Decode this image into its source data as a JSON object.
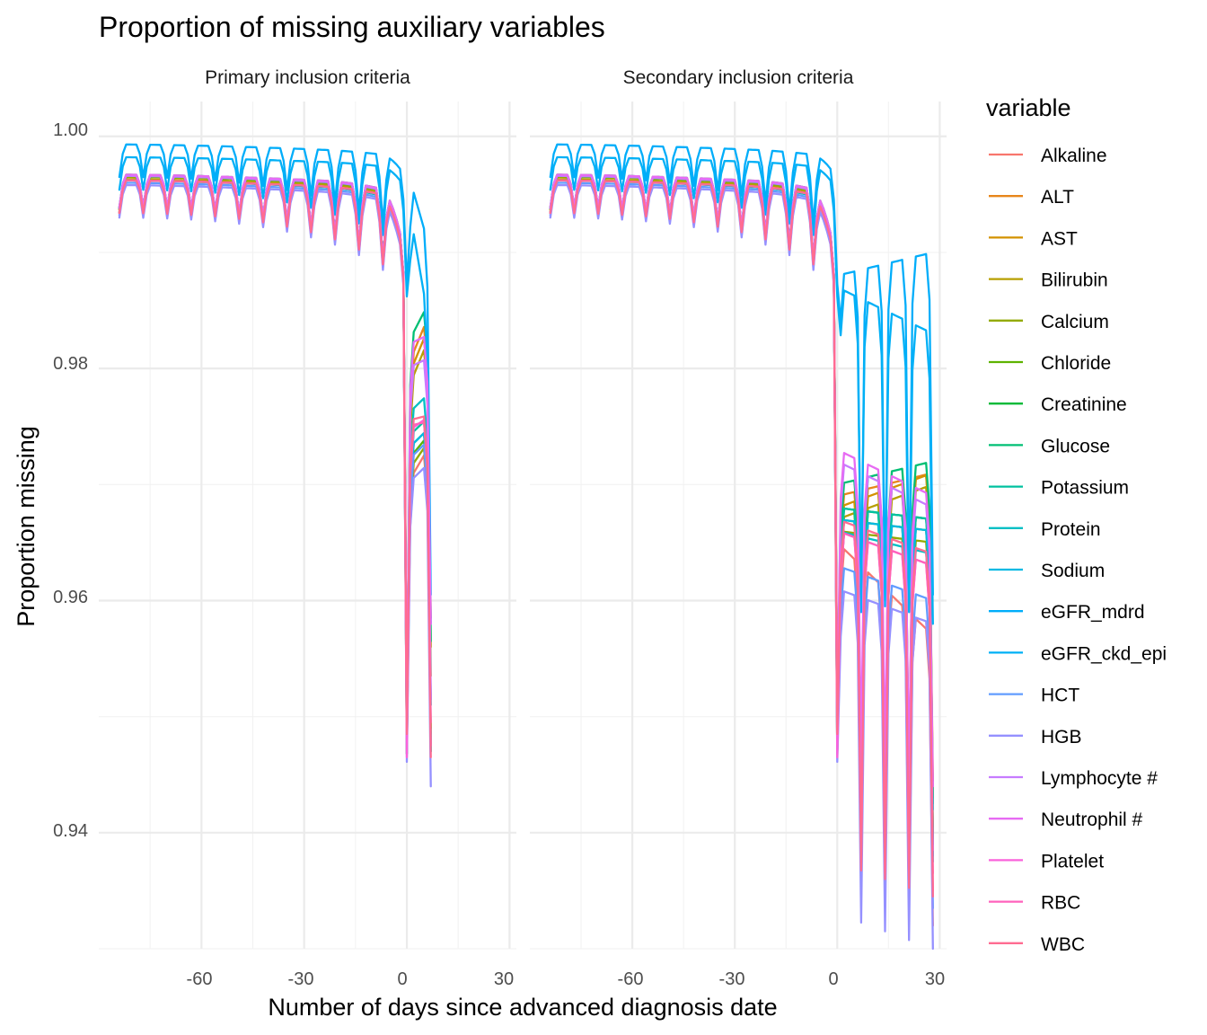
{
  "chart_data": {
    "type": "line",
    "title": "Proportion of missing auxiliary variables",
    "xlabel": "Number of days since advanced diagnosis date",
    "ylabel": "Proportion missing",
    "xlim": [
      -90,
      32
    ],
    "ylim": [
      0.93,
      1.003
    ],
    "x_ticks": [
      -60,
      -30,
      0,
      30
    ],
    "y_ticks": [
      0.94,
      0.96,
      0.98,
      1.0
    ],
    "x_tick_labels": [
      "-60",
      "-30",
      "0",
      "30"
    ],
    "y_tick_labels": [
      "0.94",
      "0.96",
      "0.98",
      "1.00"
    ],
    "grid": true,
    "legend": {
      "title": "variable",
      "position": "right"
    },
    "facets": [
      {
        "label": "Primary inclusion criteria",
        "x_end": 7
      },
      {
        "label": "Secondary inclusion criteria",
        "x_end": 28
      }
    ],
    "series": [
      {
        "name": "Alkaline",
        "color": "#F8766D",
        "pre": [
          0.9962,
          0.9952
        ],
        "dip": [
          0.9955,
          0.9957
        ],
        "post_p": [
          0.97,
          0.9735
        ],
        "post_s": [
          0.965,
          0.957
        ]
      },
      {
        "name": "ALT",
        "color": "#E7861B",
        "pre": [
          0.9965,
          0.9957
        ],
        "dip": [
          0.9958,
          0.996
        ],
        "post_p": [
          0.98,
          0.985
        ],
        "post_s": [
          0.969,
          0.971
        ]
      },
      {
        "name": "AST",
        "color": "#D39200",
        "pre": [
          0.9965,
          0.9957
        ],
        "dip": [
          0.9958,
          0.996
        ],
        "post_p": [
          0.979,
          0.984
        ],
        "post_s": [
          0.968,
          0.971
        ]
      },
      {
        "name": "Bilirubin",
        "color": "#B79F00",
        "pre": [
          0.9963,
          0.9955
        ],
        "dip": [
          0.9956,
          0.9958
        ],
        "post_p": [
          0.978,
          0.983
        ],
        "post_s": [
          0.967,
          0.97
        ]
      },
      {
        "name": "Calcium",
        "color": "#93AA00",
        "pre": [
          0.9965,
          0.9956
        ],
        "dip": [
          0.9957,
          0.9959
        ],
        "post_p": [
          0.971,
          0.974
        ],
        "post_s": [
          0.966,
          0.965
        ]
      },
      {
        "name": "Chloride",
        "color": "#5EB300",
        "pre": [
          0.9966,
          0.9957
        ],
        "dip": [
          0.9958,
          0.996
        ],
        "post_p": [
          0.972,
          0.9745
        ],
        "post_s": [
          0.967,
          0.966
        ]
      },
      {
        "name": "Creatinine",
        "color": "#00BA38",
        "pre": [
          0.9967,
          0.9958
        ],
        "dip": [
          0.9959,
          0.9961
        ],
        "post_p": [
          0.973,
          0.975
        ],
        "post_s": [
          0.968,
          0.967
        ]
      },
      {
        "name": "Glucose",
        "color": "#00BF74",
        "pre": [
          0.9966,
          0.9957
        ],
        "dip": [
          0.9958,
          0.996
        ],
        "post_p": [
          0.982,
          0.986
        ],
        "post_s": [
          0.97,
          0.972
        ]
      },
      {
        "name": "Potassium",
        "color": "#00C19F",
        "pre": [
          0.9966,
          0.9957
        ],
        "dip": [
          0.9958,
          0.996
        ],
        "post_p": [
          0.974,
          0.976
        ],
        "post_s": [
          0.968,
          0.967
        ]
      },
      {
        "name": "Protein",
        "color": "#00BFC4",
        "pre": [
          0.9962,
          0.9952
        ],
        "dip": [
          0.9955,
          0.9957
        ],
        "post_p": [
          0.976,
          0.978
        ],
        "post_s": [
          0.966,
          0.964
        ]
      },
      {
        "name": "Sodium",
        "color": "#00B9E3",
        "pre": [
          0.9966,
          0.9957
        ],
        "dip": [
          0.9958,
          0.996
        ],
        "post_p": [
          0.973,
          0.975
        ],
        "post_s": [
          0.967,
          0.966
        ]
      },
      {
        "name": "eGFR_mdrd",
        "color": "#00ADFA",
        "pre": [
          0.9993,
          0.9985
        ],
        "dip": [
          0.999,
          0.9992
        ],
        "post_p": [
          0.9972,
          0.99
        ],
        "post_s": [
          0.988,
          0.99
        ]
      },
      {
        "name": "eGFR_ckd_epi",
        "color": "#00B0F6",
        "pre": [
          0.9982,
          0.9975
        ],
        "dip": [
          0.998,
          0.9982
        ],
        "post_p": [
          0.995,
          0.983
        ],
        "post_s": [
          0.987,
          0.983
        ]
      },
      {
        "name": "HCT",
        "color": "#619CFF",
        "pre": [
          0.996,
          0.995
        ],
        "dip": [
          0.9953,
          0.9955
        ],
        "post_p": [
          0.972,
          0.974
        ],
        "post_s": [
          0.963,
          0.96
        ]
      },
      {
        "name": "HGB",
        "color": "#9590FF",
        "pre": [
          0.9958,
          0.9948
        ],
        "dip": [
          0.9951,
          0.9953
        ],
        "post_p": [
          0.97,
          0.972
        ],
        "post_s": [
          0.961,
          0.958
        ]
      },
      {
        "name": "Lymphocyte #",
        "color": "#C77CFF",
        "pre": [
          0.9966,
          0.9957
        ],
        "dip": [
          0.9958,
          0.996
        ],
        "post_p": [
          0.98,
          0.981
        ],
        "post_s": [
          0.972,
          0.968
        ]
      },
      {
        "name": "Neutrophil #",
        "color": "#E76BF3",
        "pre": [
          0.9967,
          0.9958
        ],
        "dip": [
          0.9959,
          0.9961
        ],
        "post_p": [
          0.982,
          0.983
        ],
        "post_s": [
          0.973,
          0.969
        ]
      },
      {
        "name": "Platelet",
        "color": "#FA62DB",
        "pre": [
          0.9962,
          0.9953
        ],
        "dip": [
          0.9955,
          0.9957
        ],
        "post_p": [
          0.9745,
          0.976
        ],
        "post_s": [
          0.966,
          0.963
        ]
      },
      {
        "name": "RBC",
        "color": "#FF62BC",
        "pre": [
          0.9962,
          0.9953
        ],
        "dip": [
          0.9955,
          0.9957
        ],
        "post_p": [
          0.975,
          0.9755
        ],
        "post_s": [
          0.966,
          0.963
        ]
      },
      {
        "name": "WBC",
        "color": "#FF6C91",
        "pre": [
          0.9962,
          0.9953
        ],
        "dip": [
          0.9955,
          0.9957
        ],
        "post_p": [
          0.9755,
          0.976
        ],
        "post_s": [
          0.967,
          0.964
        ]
      }
    ]
  }
}
